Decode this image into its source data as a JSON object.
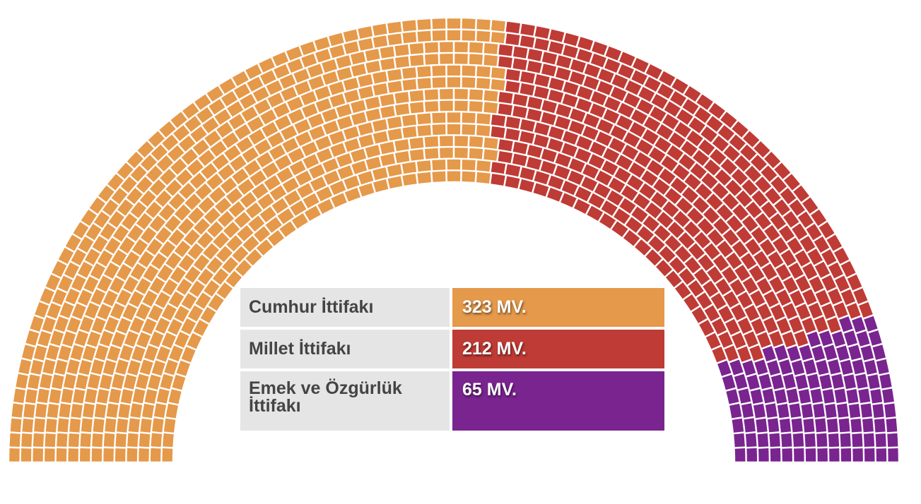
{
  "chart_data": {
    "type": "parliament",
    "total_seats": 600,
    "series": [
      {
        "name": "Cumhur İttifakı",
        "value": 323,
        "label": "323 MV.",
        "color": "#e5994a"
      },
      {
        "name": "Millet İttifakı",
        "value": 212,
        "label": "212 MV.",
        "color": "#bf3b35"
      },
      {
        "name": "Emek ve Özgürlük İttifakı",
        "value": 65,
        "label": "65 MV.",
        "color": "#7a2490"
      }
    ]
  }
}
